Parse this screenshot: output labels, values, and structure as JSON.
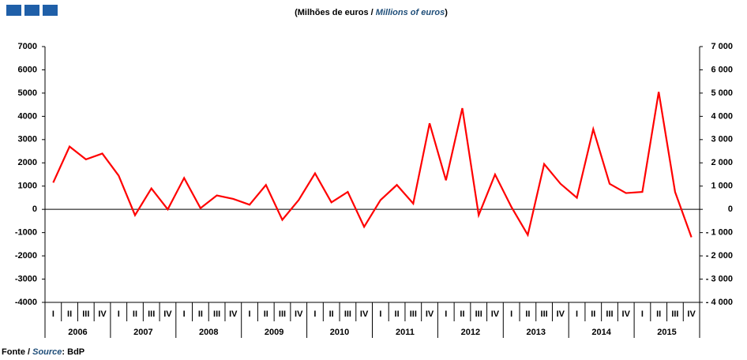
{
  "chart_data": {
    "type": "line",
    "title_parts": [
      "(Milhões  de euros / ",
      "Millions of euros",
      ")"
    ],
    "source_parts": [
      "Fonte / ",
      "Source",
      ": BdP"
    ],
    "categories": [
      "I",
      "II",
      "III",
      "IV",
      "I",
      "II",
      "III",
      "IV",
      "I",
      "II",
      "III",
      "IV",
      "I",
      "II",
      "III",
      "IV",
      "I",
      "II",
      "III",
      "IV",
      "I",
      "II",
      "III",
      "IV",
      "I",
      "II",
      "III",
      "IV",
      "I",
      "II",
      "III",
      "IV",
      "I",
      "II",
      "III",
      "IV",
      "I",
      "II",
      "III",
      "IV"
    ],
    "year_groups": [
      "2006",
      "2007",
      "2008",
      "2009",
      "2010",
      "2011",
      "2012",
      "2013",
      "2014",
      "2015"
    ],
    "series": [
      {
        "color": "#ff0000",
        "values": [
          1150,
          2700,
          2150,
          2400,
          1450,
          -250,
          900,
          0,
          1350,
          50,
          600,
          450,
          200,
          1050,
          -450,
          400,
          1550,
          300,
          750,
          -750,
          400,
          1050,
          250,
          3700,
          1250,
          4350,
          -250,
          1500,
          100,
          -1100,
          1950,
          1100,
          500,
          3450,
          1100,
          700,
          750,
          5050,
          750,
          -1200
        ]
      }
    ],
    "ylim": [
      -4000,
      7000
    ],
    "yticks": [
      7000,
      6000,
      5000,
      4000,
      3000,
      2000,
      1000,
      0,
      -1000,
      -2000,
      -3000,
      -4000
    ],
    "y2lim": [
      -4000,
      7000
    ],
    "y2ticks": [
      {
        "value": 7000,
        "label": "7 000"
      },
      {
        "value": 6000,
        "label": "6 000"
      },
      {
        "value": 5000,
        "label": "5 000"
      },
      {
        "value": 4000,
        "label": "4 000"
      },
      {
        "value": 3000,
        "label": "3 000"
      },
      {
        "value": 2000,
        "label": "2 000"
      },
      {
        "value": 1000,
        "label": "1 000"
      },
      {
        "value": 0,
        "label": "0"
      },
      {
        "value": -1000,
        "label": "- 1 000"
      },
      {
        "value": -2000,
        "label": "- 2 000"
      },
      {
        "value": -3000,
        "label": "- 3 000"
      },
      {
        "value": -4000,
        "label": "- 4 000"
      }
    ]
  }
}
